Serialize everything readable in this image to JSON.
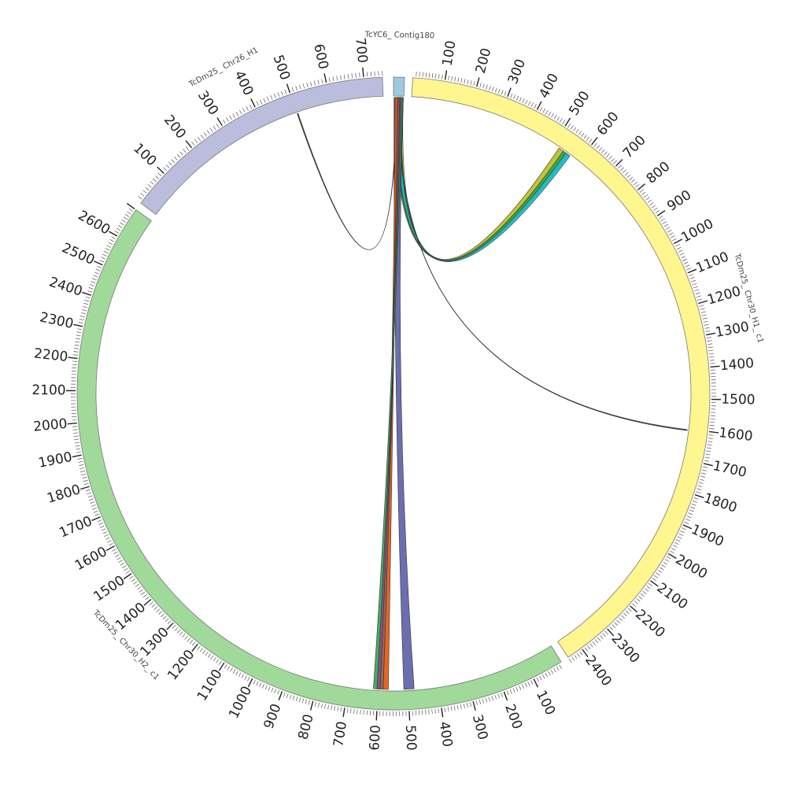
{
  "colors": {
    "background": "#ffffff",
    "outline": "#777777",
    "tick": "#555555"
  },
  "segments": [
    {
      "id": "contig180",
      "label": "TcYC6_ Contig180",
      "start_deg": 0.0,
      "end_deg": 2.0,
      "max": 0,
      "major_step": 100,
      "color": "#9ecae1",
      "labels": []
    },
    {
      "id": "chr30h1",
      "label": "TcDm25_ Chr30_H1_ c1",
      "start_deg": 3.5,
      "end_deg": 146.5,
      "max": 2450,
      "major_step": 100,
      "color": "#fff68f",
      "labels": [
        "100",
        "200",
        "300",
        "400",
        "500",
        "600",
        "700",
        "800",
        "900",
        "1000",
        "1100",
        "1200",
        "1300",
        "1400",
        "1500",
        "1600",
        "1700",
        "1800",
        "1900",
        "2000",
        "2100",
        "2200",
        "2300",
        "2400"
      ]
    },
    {
      "id": "chr30h2",
      "label": "TcDm25_ Chr30_H2_ c1",
      "start_deg": 148.0,
      "end_deg": 305.5,
      "max": 2700,
      "major_step": 100,
      "color": "#a1d99b",
      "labels": [
        "100",
        "200",
        "300",
        "400",
        "500",
        "600",
        "700",
        "800",
        "900",
        "1000",
        "1100",
        "1200",
        "1300",
        "1400",
        "1500",
        "1600",
        "1700",
        "1800",
        "1900",
        "2000",
        "2100",
        "2200",
        "2300",
        "2400",
        "2500",
        "2600"
      ]
    },
    {
      "id": "chr26h1",
      "label": "TcDm25_ Chr26_H1",
      "start_deg": 307.0,
      "end_deg": 358.0,
      "max": 750,
      "major_step": 100,
      "color": "#bcbddc",
      "labels": [
        "100",
        "200",
        "300",
        "400",
        "500",
        "600",
        "700"
      ]
    }
  ],
  "links": [
    {
      "name": "link-contig-chr30h1-olive",
      "a": [
        0.2,
        1.9
      ],
      "b": [
        34.0,
        35.0
      ],
      "color": "#bcbd22"
    },
    {
      "name": "link-contig-chr30h1-green",
      "a": [
        0.4,
        1.6
      ],
      "b": [
        35.0,
        36.2
      ],
      "color": "#2ca02c"
    },
    {
      "name": "link-contig-chr30h1-teal",
      "a": [
        0.6,
        1.4
      ],
      "b": [
        35.6,
        36.6
      ],
      "color": "#17becf"
    },
    {
      "name": "link-contig-chr30h1-thin",
      "a": [
        0.9,
        1.0
      ],
      "b": [
        97.0,
        97.2
      ],
      "color": "#333333"
    },
    {
      "name": "link-contig-chr26-thin",
      "a": [
        0.5,
        0.6
      ],
      "b": [
        341.0,
        341.2
      ],
      "color": "#333333"
    },
    {
      "name": "link-contig-chr30h2-navy",
      "a": [
        0.1,
        1.9
      ],
      "b": [
        176.0,
        178.0
      ],
      "color": "#5b5ea6"
    },
    {
      "name": "link-contig-chr30h2-orange",
      "a": [
        0.3,
        0.8
      ],
      "b": [
        181.0,
        182.0
      ],
      "color": "#e6550d"
    },
    {
      "name": "link-contig-chr30h2-brown",
      "a": [
        0.8,
        1.2
      ],
      "b": [
        182.0,
        182.6
      ],
      "color": "#8c564b"
    },
    {
      "name": "link-contig-chr30h2-purple",
      "a": [
        1.2,
        1.5
      ],
      "b": [
        182.6,
        183.2
      ],
      "color": "#7b4173"
    },
    {
      "name": "link-contig-chr30h2-darkgreen",
      "a": [
        1.5,
        1.8
      ],
      "b": [
        183.2,
        183.9
      ],
      "color": "#31a354"
    }
  ]
}
